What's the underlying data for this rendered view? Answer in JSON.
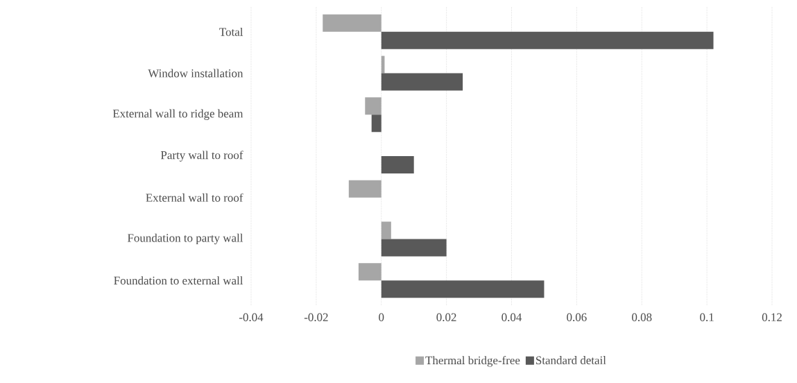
{
  "chart_data": {
    "type": "bar",
    "orientation": "horizontal",
    "categories": [
      "Total",
      "Window installation",
      "External wall to ridge beam",
      "Party wall to roof",
      "External wall to roof",
      "Foundation to party wall",
      "Foundation to external wall"
    ],
    "series": [
      {
        "name": "Thermal bridge-free",
        "color": "#a6a6a6",
        "values": [
          -0.018,
          0.001,
          -0.005,
          0,
          -0.01,
          0.003,
          -0.007
        ]
      },
      {
        "name": "Standard detail",
        "color": "#595959",
        "values": [
          0.102,
          0.025,
          -0.003,
          0.01,
          0,
          0.02,
          0.05
        ]
      }
    ],
    "xlim": [
      -0.04,
      0.12
    ],
    "xticks": [
      -0.04,
      -0.02,
      0,
      0.02,
      0.04,
      0.06,
      0.08,
      0.1,
      0.12
    ],
    "grid": "x",
    "legend": "bottom"
  }
}
